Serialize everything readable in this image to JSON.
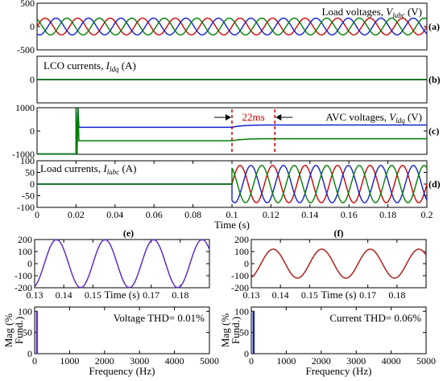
{
  "chart_data": [
    {
      "id": "a",
      "type": "line",
      "panel_label": "(a)",
      "title": "Load voltages, V_labc (V)",
      "title_parts": [
        "Load voltages, ",
        "V",
        "labc",
        " (V)"
      ],
      "xlim": [
        0,
        0.2
      ],
      "ylim": [
        -500,
        500
      ],
      "yticks": [
        -500,
        0,
        500
      ],
      "ytick_labels": [
        "-500",
        "0",
        "500"
      ],
      "x_tick_labels_shown": false,
      "series": [
        {
          "color": "#d00000",
          "amplitude": 180,
          "freq_hz": 60,
          "phase_deg": 0
        },
        {
          "color": "#1020d0",
          "amplitude": 180,
          "freq_hz": 60,
          "phase_deg": -120
        },
        {
          "color": "#008000",
          "amplitude": 180,
          "freq_hz": 60,
          "phase_deg": 120
        }
      ]
    },
    {
      "id": "b",
      "type": "line",
      "panel_label": "(b)",
      "title": "LCO currents, I_ldq (A)",
      "title_parts": [
        "LCO currents, ",
        "I",
        "ldq",
        " (A)"
      ],
      "xlim": [
        0,
        0.2
      ],
      "ylim": [
        -1,
        1
      ],
      "yticks": [
        0
      ],
      "ytick_labels": [
        "0"
      ],
      "x_tick_labels_shown": false,
      "series": [
        {
          "color": "#d00000",
          "constant": 0
        },
        {
          "color": "#1020d0",
          "constant": 0
        },
        {
          "color": "#008000",
          "constant": 0
        }
      ]
    },
    {
      "id": "c",
      "type": "line",
      "panel_label": "(c)",
      "title": "AVC voltages, V_ldq (V)",
      "title_parts": [
        "AVC voltages, ",
        "V",
        "ldq",
        " (V)"
      ],
      "xlim": [
        0,
        0.2
      ],
      "ylim": [
        -1000,
        1000
      ],
      "yticks": [
        -1000,
        0,
        1000
      ],
      "ytick_labels": [
        "-1000",
        "0",
        "1000"
      ],
      "x_tick_labels_shown": false,
      "annotation": {
        "text": "22ms",
        "x1": 0.1,
        "x2": 0.122
      },
      "series": [
        {
          "color": "#1020d0",
          "start_x": 0.02,
          "initial": -1000,
          "transient_peak": 1000,
          "level_before": 160,
          "level_after": 260
        },
        {
          "color": "#008000",
          "start_x": 0.02,
          "initial": -1000,
          "transient_peak": 1000,
          "level_before": -420,
          "level_after": -330
        }
      ]
    },
    {
      "id": "d",
      "type": "line",
      "panel_label": "(d)",
      "title": "Load currents, I_labc (A)",
      "title_parts": [
        "Load currents, ",
        "I",
        "labc",
        " (A)"
      ],
      "xlim": [
        0,
        0.2
      ],
      "ylim": [
        -100,
        100
      ],
      "yticks": [
        -100,
        -50,
        0,
        50,
        100
      ],
      "ytick_labels": [
        "-100",
        "-50",
        "0",
        "50",
        "100"
      ],
      "xticks": [
        0,
        0.02,
        0.04,
        0.06,
        0.08,
        0.1,
        0.12,
        0.14,
        0.16,
        0.18,
        0.2
      ],
      "xtick_labels": [
        "0",
        "0.02",
        "0.04",
        "0.06",
        "0.08",
        "0.1",
        "0.12",
        "0.14",
        "0.16",
        "0.18",
        "0.2"
      ],
      "xlabel": "Time (s)",
      "step_on_x": 0.1,
      "series": [
        {
          "color": "#d00000",
          "amplitude": 80,
          "freq_hz": 60,
          "phase_deg": 0
        },
        {
          "color": "#1020d0",
          "amplitude": 80,
          "freq_hz": 60,
          "phase_deg": -120
        },
        {
          "color": "#008000",
          "amplitude": 80,
          "freq_hz": 60,
          "phase_deg": 120
        }
      ]
    },
    {
      "id": "e",
      "type": "line",
      "panel_label": "(e)",
      "xlim": [
        0.13,
        0.19
      ],
      "ylim": [
        -200,
        200
      ],
      "yticks": [
        -200,
        -100,
        0,
        100,
        200
      ],
      "ytick_labels": [
        "-200",
        "-100",
        "0",
        "100",
        "200"
      ],
      "xticks": [
        0.13,
        0.14,
        0.15,
        0.17,
        0.18
      ],
      "xtick_labels": [
        "0.13",
        "0.14",
        "0.15",
        "0.17",
        "0.18"
      ],
      "xlabel": "Time (s)",
      "xlabel_at": 0.16,
      "series": [
        {
          "color": "#6030c0",
          "amplitude": 200,
          "freq_hz": 60,
          "phase_deg": 0
        }
      ]
    },
    {
      "id": "f",
      "type": "line",
      "panel_label": "(f)",
      "xlim": [
        0.13,
        0.19
      ],
      "ylim": [
        -200,
        200
      ],
      "yticks": [
        -200,
        -100,
        0,
        100,
        200
      ],
      "ytick_labels": [
        "-200",
        "-100",
        "0",
        "100",
        "200"
      ],
      "xticks": [
        0.13,
        0.14,
        0.15,
        0.17,
        0.18
      ],
      "xtick_labels": [
        "0.13",
        "0.14",
        "0.15",
        "0.17",
        "0.18"
      ],
      "xlabel": "Time (s)",
      "xlabel_at": 0.16,
      "series": [
        {
          "color": "#b02020",
          "amplitude": 120,
          "freq_hz": 60,
          "phase_deg": 0
        }
      ]
    },
    {
      "id": "g",
      "type": "bar",
      "xlim": [
        0,
        5000
      ],
      "ylim": [
        0,
        110
      ],
      "yticks": [
        0,
        50,
        100
      ],
      "ytick_labels": [
        "0",
        "50",
        "100"
      ],
      "xticks": [
        0,
        1000,
        2000,
        3000,
        4000,
        5000
      ],
      "xtick_labels": [
        "0",
        "1000",
        "2000",
        "3000",
        "4000",
        "5000"
      ],
      "xlabel": "Frequency (Hz)",
      "ylabel_lines": [
        "Mag (%",
        "Fund.)"
      ],
      "annotation_text": "Voltage THD= 0.01%",
      "bar_color": "#6030c0",
      "bars": [
        {
          "x": 60,
          "value": 100
        }
      ]
    },
    {
      "id": "h",
      "type": "bar",
      "xlim": [
        0,
        5000
      ],
      "ylim": [
        0,
        110
      ],
      "yticks": [
        0,
        50,
        100
      ],
      "ytick_labels": [
        "0",
        "50",
        "100"
      ],
      "xticks": [
        0,
        1000,
        2000,
        3000,
        4000,
        5000
      ],
      "xtick_labels": [
        "0",
        "1000",
        "2000",
        "3000",
        "4000",
        "5000"
      ],
      "xlabel": "Frequency (Hz)",
      "ylabel_lines": [
        "Mag (%",
        "Fund.)"
      ],
      "annotation_text": "Current THD= 0.06%",
      "bar_color": "#1020a0",
      "bars": [
        {
          "x": 60,
          "value": 100
        }
      ]
    }
  ]
}
